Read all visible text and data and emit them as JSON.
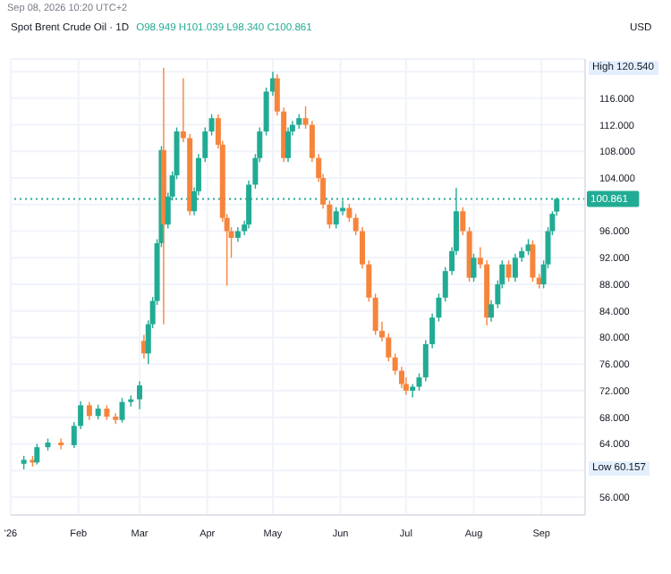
{
  "chart_data": {
    "type": "candlestick",
    "title": "Spot Brent Crude Oil · 1D",
    "subtitle": "O98.949 H101.039 L98.340 C100.861",
    "ylabel": "USD",
    "annotations": [
      "Sep 08, 2026 10:20 UTC+2",
      "High 120.540",
      "Low 60.157"
    ],
    "ref_lines": [
      {
        "axis": "y",
        "value": 100.861,
        "label": "100.861",
        "color": "#22ab94",
        "line_style": "dotted"
      }
    ],
    "x": [
      "2026-01-07",
      "2026-01-11",
      "2026-01-13",
      "2026-01-18",
      "2026-01-24",
      "2026-01-30",
      "2026-02-02",
      "2026-02-06",
      "2026-02-10",
      "2026-02-14",
      "2026-02-18",
      "2026-02-21",
      "2026-02-25",
      "2026-03-01",
      "2026-03-03",
      "2026-03-05",
      "2026-03-07",
      "2026-03-09",
      "2026-03-11",
      "2026-03-12",
      "2026-03-14",
      "2026-03-16",
      "2026-03-18",
      "2026-03-21",
      "2026-03-24",
      "2026-03-26",
      "2026-03-28",
      "2026-03-31",
      "2026-04-03",
      "2026-04-06",
      "2026-04-08",
      "2026-04-10",
      "2026-04-12",
      "2026-04-15",
      "2026-04-18",
      "2026-04-20",
      "2026-04-23",
      "2026-04-25",
      "2026-04-28",
      "2026-05-01",
      "2026-05-03",
      "2026-05-06",
      "2026-05-08",
      "2026-05-10",
      "2026-05-13",
      "2026-05-16",
      "2026-05-19",
      "2026-05-22",
      "2026-05-24",
      "2026-05-27",
      "2026-05-30",
      "2026-06-02",
      "2026-06-05",
      "2026-06-08",
      "2026-06-11",
      "2026-06-14",
      "2026-06-17",
      "2026-06-20",
      "2026-06-23",
      "2026-06-26",
      "2026-06-29",
      "2026-07-01",
      "2026-07-04",
      "2026-07-07",
      "2026-07-10",
      "2026-07-13",
      "2026-07-16",
      "2026-07-19",
      "2026-07-22",
      "2026-07-24",
      "2026-07-27",
      "2026-07-30",
      "2026-08-01",
      "2026-08-04",
      "2026-08-07",
      "2026-08-09",
      "2026-08-12",
      "2026-08-14",
      "2026-08-17",
      "2026-08-20",
      "2026-08-23",
      "2026-08-26",
      "2026-08-28",
      "2026-08-31",
      "2026-09-02",
      "2026-09-04",
      "2026-09-06",
      "2026-09-08"
    ],
    "ohlc": [
      [
        61.0,
        62.2,
        60.157,
        61.6
      ],
      [
        61.6,
        62.2,
        60.6,
        61.2
      ],
      [
        61.2,
        64.0,
        60.9,
        63.5
      ],
      [
        63.5,
        64.8,
        63.0,
        64.2
      ],
      [
        64.2,
        64.8,
        63.2,
        63.8
      ],
      [
        63.8,
        67.3,
        63.4,
        66.7
      ],
      [
        66.7,
        70.4,
        66.2,
        69.8
      ],
      [
        69.8,
        70.3,
        67.6,
        68.2
      ],
      [
        68.2,
        69.9,
        67.7,
        69.3
      ],
      [
        69.3,
        69.8,
        67.6,
        68.1
      ],
      [
        68.1,
        68.6,
        67.0,
        67.6
      ],
      [
        67.6,
        70.9,
        67.2,
        70.3
      ],
      [
        70.3,
        71.3,
        69.6,
        70.7
      ],
      [
        70.7,
        73.4,
        69.2,
        72.8
      ],
      [
        79.5,
        80.4,
        76.8,
        77.6
      ],
      [
        77.6,
        82.6,
        76.0,
        82.0
      ],
      [
        82.0,
        86.1,
        81.4,
        85.5
      ],
      [
        85.5,
        94.8,
        84.9,
        94.2
      ],
      [
        94.2,
        108.8,
        93.6,
        108.2
      ],
      [
        108.2,
        120.54,
        82.0,
        97.0
      ],
      [
        97.0,
        101.8,
        96.4,
        101.2
      ],
      [
        101.2,
        105.0,
        100.6,
        104.4
      ],
      [
        104.4,
        111.6,
        103.8,
        111.0
      ],
      [
        111.0,
        119.0,
        109.4,
        110.0
      ],
      [
        110.0,
        110.6,
        98.4,
        99.0
      ],
      [
        99.0,
        102.6,
        98.4,
        102.0
      ],
      [
        102.0,
        107.6,
        101.4,
        107.0
      ],
      [
        107.0,
        111.6,
        106.4,
        111.0
      ],
      [
        111.0,
        113.6,
        110.4,
        113.0
      ],
      [
        113.0,
        113.6,
        108.4,
        109.0
      ],
      [
        109.0,
        109.6,
        97.4,
        98.0
      ],
      [
        98.0,
        98.6,
        87.8,
        96.0
      ],
      [
        96.0,
        96.6,
        92.0,
        95.0
      ],
      [
        95.0,
        96.6,
        94.4,
        96.0
      ],
      [
        96.0,
        97.6,
        95.4,
        97.0
      ],
      [
        97.0,
        103.6,
        96.4,
        103.0
      ],
      [
        103.0,
        107.6,
        102.4,
        107.0
      ],
      [
        107.0,
        111.6,
        106.4,
        111.0
      ],
      [
        111.0,
        117.6,
        110.4,
        117.0
      ],
      [
        117.0,
        120.0,
        116.4,
        119.0
      ],
      [
        119.0,
        119.6,
        113.4,
        114.0
      ],
      [
        114.0,
        114.6,
        106.4,
        107.0
      ],
      [
        107.0,
        111.6,
        106.4,
        111.0
      ],
      [
        111.0,
        112.6,
        110.4,
        112.0
      ],
      [
        112.0,
        113.6,
        111.4,
        113.0
      ],
      [
        113.0,
        114.8,
        111.4,
        112.0
      ],
      [
        112.0,
        112.6,
        106.4,
        107.0
      ],
      [
        107.0,
        107.6,
        103.4,
        104.0
      ],
      [
        104.0,
        104.6,
        99.4,
        100.0
      ],
      [
        100.0,
        100.6,
        96.4,
        97.0
      ],
      [
        97.0,
        99.6,
        96.4,
        99.0
      ],
      [
        99.0,
        100.6,
        98.4,
        99.5
      ],
      [
        99.5,
        100.1,
        97.4,
        98.0
      ],
      [
        98.0,
        98.6,
        95.4,
        96.0
      ],
      [
        96.0,
        96.6,
        90.4,
        91.0
      ],
      [
        91.0,
        91.6,
        85.4,
        86.0
      ],
      [
        86.0,
        86.6,
        80.4,
        81.0
      ],
      [
        81.0,
        82.4,
        79.4,
        80.0
      ],
      [
        80.0,
        80.6,
        76.4,
        77.0
      ],
      [
        77.0,
        77.6,
        74.4,
        75.0
      ],
      [
        75.0,
        75.6,
        72.4,
        73.0
      ],
      [
        73.0,
        74.0,
        71.4,
        72.0
      ],
      [
        72.0,
        73.0,
        71.0,
        72.6
      ],
      [
        72.6,
        74.6,
        72.0,
        74.0
      ],
      [
        74.0,
        79.6,
        73.4,
        79.0
      ],
      [
        79.0,
        83.6,
        78.4,
        83.0
      ],
      [
        83.0,
        86.6,
        82.4,
        86.0
      ],
      [
        86.0,
        90.6,
        85.4,
        90.0
      ],
      [
        90.0,
        93.6,
        89.4,
        93.0
      ],
      [
        93.0,
        102.5,
        92.4,
        99.0
      ],
      [
        99.0,
        99.6,
        95.4,
        96.0
      ],
      [
        96.0,
        96.6,
        88.4,
        89.0
      ],
      [
        89.0,
        92.6,
        88.4,
        92.0
      ],
      [
        92.0,
        93.6,
        90.4,
        91.0
      ],
      [
        91.0,
        91.6,
        81.8,
        83.0
      ],
      [
        83.0,
        85.6,
        82.4,
        85.0
      ],
      [
        85.0,
        88.6,
        84.4,
        88.0
      ],
      [
        88.0,
        91.6,
        87.4,
        91.0
      ],
      [
        91.0,
        91.6,
        88.4,
        89.0
      ],
      [
        89.0,
        92.6,
        88.4,
        92.0
      ],
      [
        92.0,
        93.6,
        91.4,
        93.0
      ],
      [
        93.0,
        94.8,
        92.4,
        94.0
      ],
      [
        94.0,
        94.6,
        88.4,
        89.0
      ],
      [
        89.0,
        89.6,
        87.4,
        88.0
      ],
      [
        88.0,
        91.6,
        87.4,
        91.0
      ],
      [
        91.0,
        96.6,
        90.4,
        96.0
      ],
      [
        96.0,
        99.0,
        95.4,
        98.6
      ],
      [
        98.949,
        101.039,
        98.34,
        100.861
      ]
    ],
    "colors": [
      "#22ab94",
      "#f7843b",
      "#22ab94",
      "#22ab94",
      "#f7843b",
      "#22ab94",
      "#22ab94",
      "#f7843b",
      "#22ab94",
      "#f7843b",
      "#f7843b",
      "#22ab94",
      "#22ab94",
      "#22ab94",
      "#f7843b",
      "#22ab94",
      "#22ab94",
      "#22ab94",
      "#22ab94",
      "#f7843b",
      "#22ab94",
      "#22ab94",
      "#22ab94",
      "#f7843b",
      "#f7843b",
      "#22ab94",
      "#22ab94",
      "#22ab94",
      "#22ab94",
      "#f7843b",
      "#f7843b",
      "#f7843b",
      "#f7843b",
      "#22ab94",
      "#22ab94",
      "#22ab94",
      "#22ab94",
      "#22ab94",
      "#22ab94",
      "#22ab94",
      "#f7843b",
      "#f7843b",
      "#22ab94",
      "#22ab94",
      "#22ab94",
      "#f7843b",
      "#f7843b",
      "#f7843b",
      "#f7843b",
      "#f7843b",
      "#22ab94",
      "#22ab94",
      "#f7843b",
      "#f7843b",
      "#f7843b",
      "#f7843b",
      "#f7843b",
      "#f7843b",
      "#f7843b",
      "#f7843b",
      "#f7843b",
      "#f7843b",
      "#22ab94",
      "#22ab94",
      "#22ab94",
      "#22ab94",
      "#22ab94",
      "#22ab94",
      "#22ab94",
      "#22ab94",
      "#f7843b",
      "#f7843b",
      "#22ab94",
      "#f7843b",
      "#f7843b",
      "#22ab94",
      "#22ab94",
      "#22ab94",
      "#f7843b",
      "#22ab94",
      "#22ab94",
      "#22ab94",
      "#f7843b",
      "#f7843b",
      "#22ab94",
      "#22ab94",
      "#22ab94",
      "#22ab94"
    ],
    "xlim": [
      "2026-01-01",
      "2026-09-21"
    ],
    "xticks": [
      {
        "value": "2026-01-01",
        "label": "'26"
      },
      {
        "value": "2026-02-01",
        "label": "Feb"
      },
      {
        "value": "2026-03-01",
        "label": "Mar"
      },
      {
        "value": "2026-04-01",
        "label": "Apr"
      },
      {
        "value": "2026-05-01",
        "label": "May"
      },
      {
        "value": "2026-06-01",
        "label": "Jun"
      },
      {
        "value": "2026-07-01",
        "label": "Jul"
      },
      {
        "value": "2026-08-01",
        "label": "Aug"
      },
      {
        "value": "2026-09-01",
        "label": "Sep"
      }
    ],
    "ylim": [
      53.3,
      121.9
    ],
    "yticks": [
      {
        "value": 56,
        "label": "56.000"
      },
      {
        "value": 60,
        "label": null
      },
      {
        "value": 64,
        "label": "64.000"
      },
      {
        "value": 68,
        "label": "68.000"
      },
      {
        "value": 72,
        "label": "72.000"
      },
      {
        "value": 76,
        "label": "76.000"
      },
      {
        "value": 80,
        "label": "80.000"
      },
      {
        "value": 84,
        "label": "84.000"
      },
      {
        "value": 88,
        "label": "88.000"
      },
      {
        "value": 92,
        "label": "92.000"
      },
      {
        "value": 96,
        "label": "96.000"
      },
      {
        "value": 100,
        "label": null
      },
      {
        "value": 104,
        "label": "104.000"
      },
      {
        "value": 108,
        "label": "108.000"
      },
      {
        "value": 112,
        "label": "112.000"
      },
      {
        "value": 116,
        "label": "116.000"
      },
      {
        "value": 120,
        "label": null
      }
    ],
    "grid": true
  }
}
